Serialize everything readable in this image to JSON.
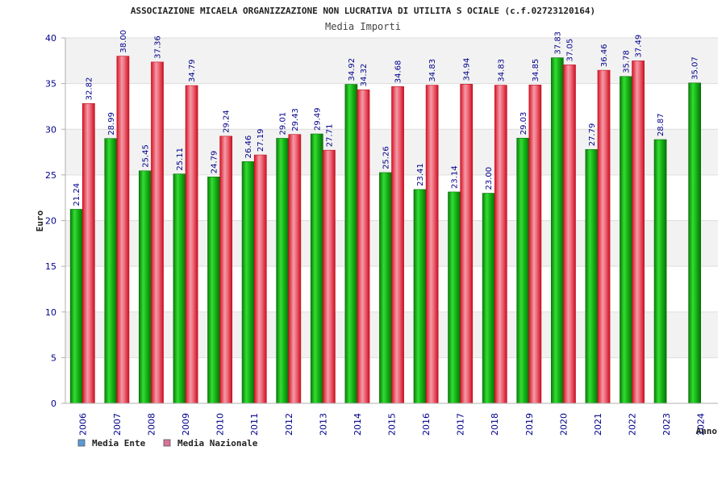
{
  "chart_data": {
    "type": "bar",
    "title": "ASSOCIAZIONE MICAELA ORGANIZZAZIONE NON LUCRATIVA DI UTILITA S OCIALE (c.f.02723120164)",
    "subtitle": "Media Importi",
    "xlabel": "Anno",
    "ylabel": "Euro",
    "ylim": [
      0,
      40
    ],
    "yticks": [
      0,
      5,
      10,
      15,
      20,
      25,
      30,
      35,
      40
    ],
    "grid": true,
    "legend_position": "bottom-left",
    "categories": [
      "2006",
      "2007",
      "2008",
      "2009",
      "2010",
      "2011",
      "2012",
      "2013",
      "2014",
      "2015",
      "2016",
      "2017",
      "2018",
      "2019",
      "2020",
      "2021",
      "2022",
      "2023",
      "2024"
    ],
    "series": [
      {
        "name": "Media Ente",
        "color": "#16b416",
        "legend_color": "#5b9bd5",
        "values": [
          21.24,
          28.99,
          25.45,
          25.11,
          24.79,
          26.46,
          29.01,
          29.49,
          34.92,
          25.26,
          23.41,
          23.14,
          23.0,
          29.03,
          37.83,
          27.79,
          35.78,
          28.87,
          35.07
        ],
        "labels": [
          "21.24",
          "28.99",
          "25.45",
          "25.11",
          "24.79",
          "26.46",
          "29.01",
          "29.49",
          "34.92",
          "25.26",
          "23.41",
          "23.14",
          "23.00",
          "29.03",
          "37.83",
          "27.79",
          "35.78",
          "28.87",
          "35.07"
        ]
      },
      {
        "name": "Media Nazionale",
        "color": "#e8303e",
        "legend_color": "#d9739a",
        "values": [
          32.82,
          38.0,
          37.36,
          34.79,
          29.24,
          27.19,
          29.43,
          27.71,
          34.32,
          34.68,
          34.83,
          34.94,
          34.83,
          34.85,
          37.05,
          36.46,
          37.49,
          null,
          null
        ],
        "labels": [
          "32.82",
          "38.00",
          "37.36",
          "34.79",
          "29.24",
          "27.19",
          "29.43",
          "27.71",
          "34.32",
          "34.68",
          "34.83",
          "34.94",
          "34.83",
          "34.85",
          "37.05",
          "36.46",
          "37.49",
          null,
          null
        ]
      }
    ]
  }
}
